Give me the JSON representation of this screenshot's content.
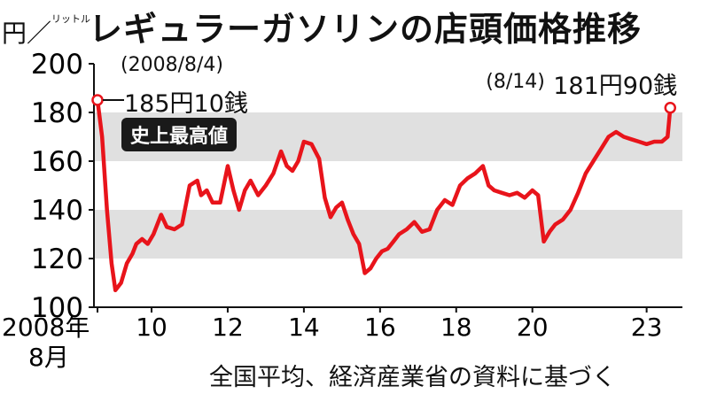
{
  "chart_data": {
    "type": "line",
    "title": "レギュラーガソリンの店頭価格推移",
    "unit": "円／リットル",
    "source": "全国平均、経済産業省の資料に基づく",
    "ylim": [
      100,
      200
    ],
    "yticks": [
      100,
      120,
      140,
      160,
      180,
      200
    ],
    "xlim": [
      2008.58,
      2023.8
    ],
    "xticks": [
      {
        "value": 2008.58,
        "label": "2008年",
        "sublabel": "8月"
      },
      {
        "value": 2010,
        "label": "10"
      },
      {
        "value": 2012,
        "label": "12"
      },
      {
        "value": 2014,
        "label": "14"
      },
      {
        "value": 2016,
        "label": "16"
      },
      {
        "value": 2018,
        "label": "18"
      },
      {
        "value": 2020,
        "label": "20"
      },
      {
        "value": 2023,
        "label": "23"
      }
    ],
    "shaded_bands": [
      [
        120,
        140
      ],
      [
        160,
        180
      ]
    ],
    "series": [
      {
        "color": "#e8141b",
        "x": [
          2008.58,
          2008.7,
          2008.83,
          2008.95,
          2009.05,
          2009.2,
          2009.35,
          2009.5,
          2009.6,
          2009.75,
          2009.9,
          2010.05,
          2010.25,
          2010.4,
          2010.6,
          2010.8,
          2011.0,
          2011.2,
          2011.3,
          2011.45,
          2011.6,
          2011.8,
          2012.0,
          2012.15,
          2012.3,
          2012.45,
          2012.6,
          2012.8,
          2013.0,
          2013.2,
          2013.4,
          2013.55,
          2013.7,
          2013.85,
          2014.0,
          2014.2,
          2014.4,
          2014.55,
          2014.7,
          2014.85,
          2015.0,
          2015.15,
          2015.3,
          2015.45,
          2015.6,
          2015.75,
          2015.9,
          2016.05,
          2016.2,
          2016.35,
          2016.5,
          2016.7,
          2016.9,
          2017.1,
          2017.3,
          2017.5,
          2017.7,
          2017.9,
          2018.1,
          2018.3,
          2018.5,
          2018.7,
          2018.85,
          2019.0,
          2019.2,
          2019.4,
          2019.6,
          2019.8,
          2020.0,
          2020.15,
          2020.3,
          2020.45,
          2020.6,
          2020.8,
          2021.0,
          2021.2,
          2021.4,
          2021.6,
          2021.8,
          2022.0,
          2022.2,
          2022.4,
          2022.6,
          2022.8,
          2023.0,
          2023.2,
          2023.4,
          2023.55,
          2023.62
        ],
        "y": [
          185.1,
          170,
          140,
          118,
          107,
          110,
          118,
          122,
          126,
          128,
          126,
          130,
          138,
          133,
          132,
          134,
          150,
          152,
          146,
          148,
          143,
          143,
          158,
          148,
          140,
          148,
          152,
          146,
          150,
          155,
          164,
          158,
          156,
          160,
          168,
          167,
          161,
          145,
          137,
          141,
          143,
          136,
          130,
          126,
          114,
          116,
          120,
          123,
          124,
          127,
          130,
          132,
          135,
          131,
          132,
          140,
          144,
          142,
          150,
          153,
          155,
          158,
          150,
          148,
          147,
          146,
          147,
          145,
          148,
          146,
          127,
          131,
          134,
          136,
          140,
          147,
          155,
          160,
          165,
          170,
          172,
          170,
          169,
          168,
          167,
          168,
          168,
          170,
          181.9
        ]
      }
    ],
    "annotations": [
      {
        "date": "(2008/8/4)",
        "value_text": "185円10銭",
        "x": 2008.58,
        "y": 185.1
      },
      {
        "date": "(8/14)",
        "value_text": "181円90銭",
        "x": 2023.62,
        "y": 181.9
      }
    ],
    "record_label": "史上最高値"
  }
}
